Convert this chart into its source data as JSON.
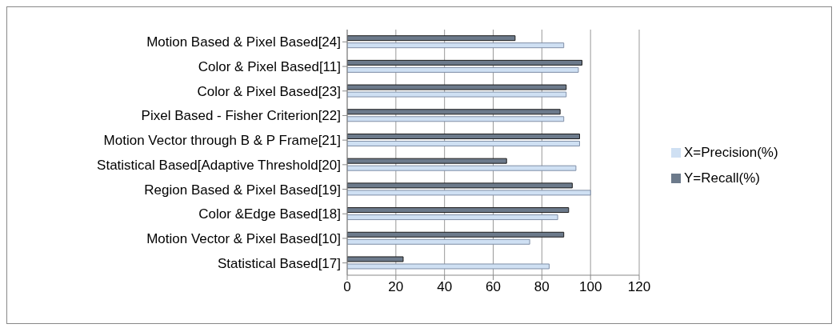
{
  "chart_data": {
    "type": "bar",
    "orientation": "horizontal",
    "categories": [
      "Motion Based & Pixel Based[24]",
      "Color & Pixel Based[11]",
      "Color & Pixel Based[23]",
      "Pixel Based - Fisher Criterion[22]",
      "Motion Vector through B & P Frame[21]",
      "Statistical Based[Adaptive Threshold[20]",
      "Region Based & Pixel Based[19]",
      "Color &Edge Based[18]",
      "Motion Vector & Pixel Based[10]",
      "Statistical Based[17]"
    ],
    "series": [
      {
        "name": "Y=Recall(%)",
        "color": "#6c7a8b",
        "values": [
          69,
          96.5,
          90,
          87.5,
          95.5,
          65.5,
          92.5,
          91,
          89,
          23
        ]
      },
      {
        "name": "X=Precision(%)",
        "color": "#cfe0f3",
        "values": [
          89,
          95,
          90,
          89,
          95.5,
          94,
          100,
          86.5,
          75,
          83
        ]
      }
    ],
    "xlim": [
      0,
      120
    ],
    "xticks": [
      0,
      20,
      40,
      60,
      80,
      100,
      120
    ],
    "grid": "x",
    "legend": "right"
  }
}
